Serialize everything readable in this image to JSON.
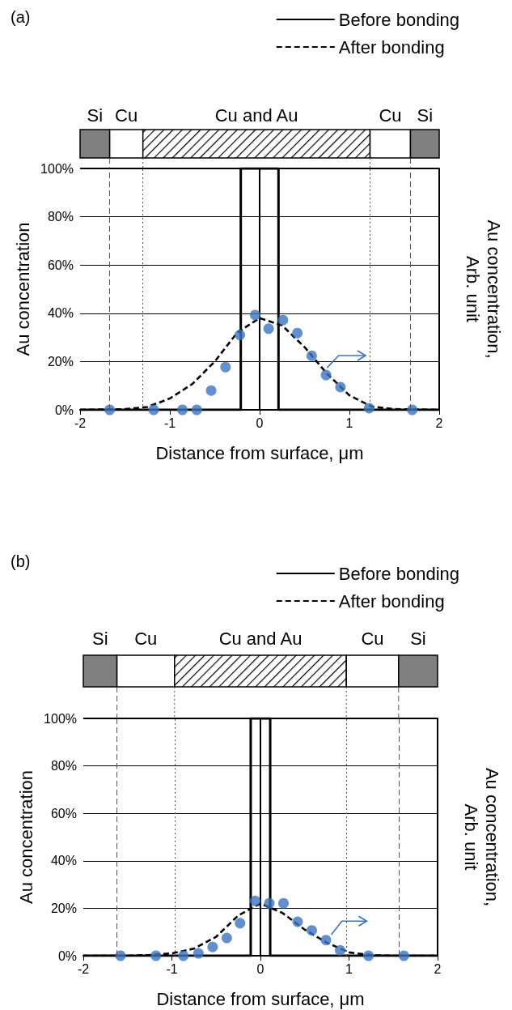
{
  "chart_data": [
    {
      "type": "line",
      "title": "(a)",
      "xlabel": "Distance from surface, μm",
      "ylabel": "Au concentration",
      "y2label": "Au concentration, Arb. unit",
      "xlim": [
        -2,
        2
      ],
      "xticks": [
        -2,
        -1,
        0,
        1,
        2
      ],
      "ylim": [
        0,
        100
      ],
      "yticks": [
        {
          "value": 0,
          "label": "0%"
        },
        {
          "value": 20,
          "label": "20%"
        },
        {
          "value": 40,
          "label": "40%"
        },
        {
          "value": 60,
          "label": "60%"
        },
        {
          "value": 80,
          "label": "80%"
        },
        {
          "value": 100,
          "label": "100%"
        }
      ],
      "grid": "y",
      "legend": "top right",
      "series": [
        {
          "name": "Before bonding",
          "color": "#000000",
          "line_style": "solid",
          "marker": "none",
          "x": [
            -2,
            -0.21,
            -0.21,
            0.21,
            0.21,
            2
          ],
          "values": [
            0,
            0,
            100,
            100,
            0,
            0
          ]
        },
        {
          "name": "After bonding",
          "color": "#000000",
          "line_style": "dashed",
          "marker": "none",
          "x": [
            -2,
            -1.5,
            -1.25,
            -1,
            -0.75,
            -0.5,
            -0.25,
            0,
            0.25,
            0.5,
            0.75,
            1,
            1.25,
            1.5,
            2
          ],
          "values": [
            0,
            0.3,
            1.2,
            4.7,
            10.7,
            20,
            32,
            38,
            35,
            26,
            15,
            6,
            1.3,
            0.3,
            0
          ]
        },
        {
          "type": "scatter",
          "color": "#3b73c2",
          "marker": "circle",
          "x": [
            -1.67,
            -1.18,
            -0.86,
            -0.7,
            -0.54,
            -0.38,
            -0.22,
            -0.05,
            0.1,
            0.26,
            0.42,
            0.58,
            0.74,
            0.9,
            1.22,
            1.7
          ],
          "values": [
            0,
            0,
            0,
            0,
            8,
            17.7,
            31,
            39.3,
            33.6,
            37.2,
            31.8,
            22.4,
            14.4,
            9.4,
            0.7,
            0
          ]
        }
      ],
      "ref_lines": [
        {
          "axis": "x",
          "value": -1.67,
          "color": "#555555",
          "line_style": "dashed"
        },
        {
          "axis": "x",
          "value": -1.3,
          "color": "#555555",
          "line_style": "dotted"
        },
        {
          "axis": "x",
          "value": 1.23,
          "color": "#555555",
          "line_style": "dotted"
        },
        {
          "axis": "x",
          "value": 1.68,
          "color": "#555555",
          "line_style": "dashed"
        }
      ],
      "annotations": [
        "Si",
        "Cu",
        "Cu and Au",
        "Cu",
        "Si"
      ]
    },
    {
      "type": "line",
      "title": "(b)",
      "xlabel": "Distance from surface, μm",
      "ylabel": "Au concentration",
      "y2label": "Au concentration, Arb. unit",
      "xlim": [
        -2,
        2
      ],
      "xticks": [
        -2,
        -1,
        0,
        1,
        2
      ],
      "ylim": [
        0,
        100
      ],
      "yticks": [
        {
          "value": 0,
          "label": "0%"
        },
        {
          "value": 20,
          "label": "20%"
        },
        {
          "value": 40,
          "label": "40%"
        },
        {
          "value": 60,
          "label": "60%"
        },
        {
          "value": 80,
          "label": "80%"
        },
        {
          "value": 100,
          "label": "100%"
        }
      ],
      "grid": "y",
      "legend": "top right",
      "series": [
        {
          "name": "Before bonding",
          "color": "#000000",
          "line_style": "solid",
          "marker": "none",
          "x": [
            -2,
            -0.11,
            -0.11,
            0.11,
            0.11,
            2
          ],
          "values": [
            0,
            0,
            100,
            100,
            0,
            0
          ]
        },
        {
          "name": "After bonding",
          "color": "#000000",
          "line_style": "dashed",
          "marker": "none",
          "x": [
            -2,
            -1.5,
            -1.25,
            -1,
            -0.75,
            -0.5,
            -0.25,
            0,
            0.25,
            0.5,
            0.75,
            1,
            1.25,
            1.5,
            2
          ],
          "values": [
            0,
            0,
            0.3,
            1,
            3,
            8,
            17,
            22,
            18,
            11,
            5.5,
            1.4,
            0.2,
            0,
            0
          ]
        },
        {
          "type": "scatter",
          "color": "#3b73c2",
          "marker": "circle",
          "x": [
            -1.58,
            -1.18,
            -0.87,
            -0.7,
            -0.54,
            -0.38,
            -0.23,
            -0.06,
            0.1,
            0.26,
            0.42,
            0.58,
            0.74,
            0.9,
            1.22,
            1.62
          ],
          "values": [
            0,
            0,
            0,
            1,
            3.7,
            7.5,
            13.7,
            23.1,
            22.1,
            22.1,
            14.3,
            10.7,
            6.6,
            2.3,
            0,
            0
          ]
        }
      ],
      "ref_lines": [
        {
          "axis": "x",
          "value": -1.62,
          "color": "#555555",
          "line_style": "dashed"
        },
        {
          "axis": "x",
          "value": -0.97,
          "color": "#555555",
          "line_style": "dotted"
        },
        {
          "axis": "x",
          "value": 0.97,
          "color": "#555555",
          "line_style": "dotted"
        },
        {
          "axis": "x",
          "value": 1.56,
          "color": "#555555",
          "line_style": "dashed"
        }
      ],
      "annotations": [
        "Si",
        "Cu",
        "Cu and Au",
        "Cu",
        "Si"
      ]
    }
  ]
}
